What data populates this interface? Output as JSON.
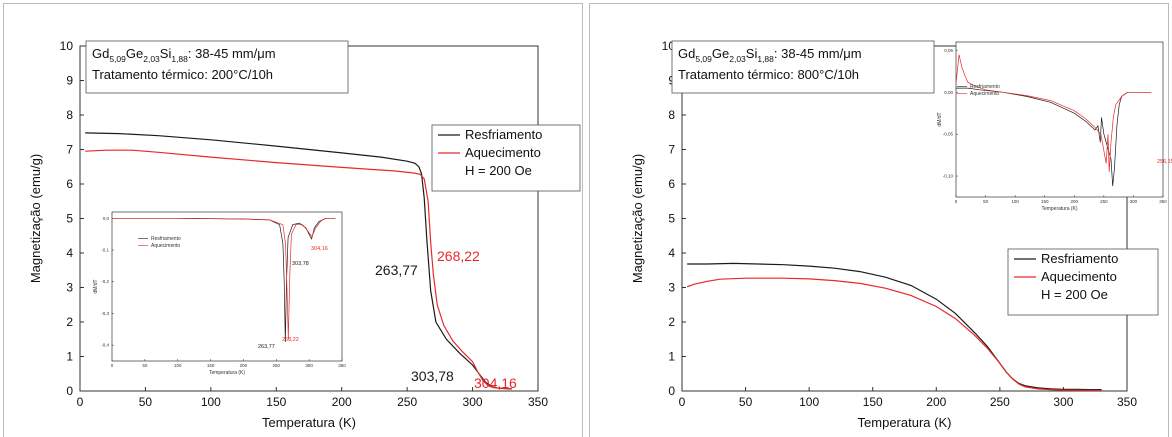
{
  "colors": {
    "resfriamento": "#1a1a1a",
    "aquecimento": "#e8292a",
    "frame": "#333333"
  },
  "chart_data": [
    {
      "type": "line",
      "xlabel": "Temperatura (K)",
      "ylabel": "Magnetização (emu/g)",
      "xlim": [
        0,
        350
      ],
      "ylim": [
        0,
        10
      ],
      "xticks": [
        "0",
        "50",
        "100",
        "150",
        "200",
        "250",
        "300",
        "350"
      ],
      "yticks": [
        "0",
        "1",
        "2",
        "3",
        "4",
        "5",
        "6",
        "7",
        "8",
        "9",
        "10"
      ],
      "info_box": {
        "sample": {
          "base": "Gd",
          "s1": "5,09",
          "e2": "Ge",
          "s2": "2,03",
          "e3": "Si",
          "s3": "1,88",
          "rest": ": 38-45 mm/μm"
        },
        "treatment": "Tratamento térmico: 200°C/10h"
      },
      "legend": {
        "placement": "right",
        "entries": [
          "Resfriamento",
          "Aquecimento"
        ],
        "note": "H = 200 Oe"
      },
      "series": [
        {
          "name": "Resfriamento",
          "x": [
            4,
            30,
            60,
            100,
            150,
            200,
            230,
            250,
            256,
            259,
            261,
            263,
            265,
            268,
            272,
            280,
            290,
            300,
            305,
            310,
            315,
            320,
            325,
            330
          ],
          "y": [
            7.48,
            7.46,
            7.4,
            7.28,
            7.1,
            6.9,
            6.78,
            6.66,
            6.6,
            6.5,
            6.3,
            5.6,
            4.4,
            2.9,
            2.0,
            1.5,
            1.1,
            0.75,
            0.5,
            0.25,
            0.12,
            0.08,
            0.07,
            0.06
          ]
        },
        {
          "name": "Aquecimento",
          "x": [
            4,
            20,
            40,
            60,
            100,
            150,
            200,
            240,
            255,
            260,
            263,
            266,
            268,
            270,
            273,
            278,
            285,
            292,
            300,
            304,
            308,
            312,
            316,
            320,
            330
          ],
          "y": [
            6.95,
            6.98,
            6.98,
            6.92,
            6.78,
            6.62,
            6.48,
            6.38,
            6.32,
            6.28,
            6.15,
            5.5,
            4.3,
            3.4,
            2.5,
            1.9,
            1.45,
            1.15,
            0.85,
            0.55,
            0.3,
            0.15,
            0.1,
            0.08,
            0.07
          ]
        }
      ],
      "annotations": [
        {
          "text": "263,77",
          "color": "black",
          "x": 263.77
        },
        {
          "text": "268,22",
          "color": "red",
          "x": 268.22
        },
        {
          "text": "303,78",
          "color": "black",
          "x": 303.78
        },
        {
          "text": "304,16",
          "color": "red",
          "x": 304.16
        }
      ],
      "inset": {
        "type": "line",
        "xlabel": "Temperatura (K)",
        "ylabel": "dM/dT",
        "xlim": [
          0,
          350
        ],
        "ylim": [
          -0.45,
          0.02
        ],
        "xticks": [
          "0",
          "50",
          "100",
          "150",
          "200",
          "250",
          "300",
          "350"
        ],
        "yticks": [
          "0,0",
          "-0,1",
          "-0,2",
          "-0,3",
          "-0,4"
        ],
        "legend": [
          "Resfriamento",
          "Aquecimento"
        ],
        "series": [
          {
            "name": "Resfriamento",
            "x": [
              0,
              100,
              200,
              240,
              255,
              260,
              262,
              263.77,
              265.5,
              268,
              275,
              285,
              295,
              300,
              303.78,
              308,
              315,
              325,
              340
            ],
            "y": [
              0,
              0,
              -0.002,
              -0.005,
              -0.02,
              -0.08,
              -0.2,
              -0.39,
              -0.2,
              -0.06,
              -0.02,
              -0.015,
              -0.03,
              -0.05,
              -0.065,
              -0.03,
              -0.01,
              0,
              0
            ]
          },
          {
            "name": "Aquecimento",
            "x": [
              0,
              100,
              200,
              240,
              260,
              264,
              266,
              268.22,
              270.5,
              273,
              280,
              290,
              298,
              304.16,
              310,
              318,
              325,
              340
            ],
            "y": [
              0,
              0,
              -0.002,
              -0.005,
              -0.02,
              -0.08,
              -0.2,
              -0.38,
              -0.18,
              -0.05,
              -0.02,
              -0.02,
              -0.04,
              -0.058,
              -0.03,
              -0.008,
              0,
              0
            ]
          }
        ],
        "annotations": [
          {
            "text": "263,77",
            "color": "black",
            "x": 263.77
          },
          {
            "text": "268,22",
            "color": "red",
            "x": 268.22
          },
          {
            "text": "303,78",
            "color": "black",
            "x": 303.78
          },
          {
            "text": "304,16",
            "color": "red",
            "x": 304.16
          }
        ]
      }
    },
    {
      "type": "line",
      "xlabel": "Temperatura (K)",
      "ylabel": "Magnetização (emu/g)",
      "xlim": [
        0,
        350
      ],
      "ylim": [
        0,
        10
      ],
      "xticks": [
        "0",
        "50",
        "100",
        "150",
        "200",
        "250",
        "300",
        "350"
      ],
      "yticks": [
        "0",
        "1",
        "2",
        "3",
        "4",
        "5",
        "6",
        "7",
        "8",
        "9",
        "10"
      ],
      "info_box": {
        "sample": {
          "base": "Gd",
          "s1": "5,09",
          "e2": "Ge",
          "s2": "2,03",
          "e3": "Si",
          "s3": "1,88",
          "rest": ": 38-45 mm/μm"
        },
        "treatment": "Tratamento térmico: 800°C/10h"
      },
      "legend": {
        "placement": "right",
        "entries": [
          "Resfriamento",
          "Aquecimento"
        ],
        "note": "H = 200 Oe"
      },
      "series": [
        {
          "name": "Resfriamento",
          "x": [
            4,
            20,
            40,
            60,
            80,
            100,
            120,
            140,
            160,
            180,
            200,
            215,
            230,
            240,
            250,
            255,
            260,
            265,
            270,
            280,
            290,
            300,
            310,
            320,
            330
          ],
          "y": [
            3.68,
            3.68,
            3.7,
            3.68,
            3.66,
            3.62,
            3.56,
            3.46,
            3.3,
            3.06,
            2.66,
            2.25,
            1.7,
            1.3,
            0.8,
            0.55,
            0.35,
            0.22,
            0.15,
            0.09,
            0.06,
            0.05,
            0.05,
            0.04,
            0.04
          ]
        },
        {
          "name": "Aquecimento",
          "x": [
            4,
            10,
            20,
            30,
            50,
            80,
            100,
            120,
            140,
            160,
            180,
            200,
            215,
            230,
            240,
            250,
            255,
            260,
            265,
            270,
            280,
            290,
            300,
            310,
            320,
            330
          ],
          "y": [
            3.02,
            3.1,
            3.18,
            3.24,
            3.27,
            3.27,
            3.25,
            3.2,
            3.12,
            2.98,
            2.77,
            2.45,
            2.1,
            1.62,
            1.25,
            0.8,
            0.55,
            0.35,
            0.2,
            0.12,
            0.06,
            0.04,
            0.03,
            0.02,
            0.02,
            0.02
          ]
        }
      ],
      "inset": {
        "type": "line",
        "xlabel": "Temperatura (K)",
        "ylabel": "dM/dT",
        "xlim": [
          0,
          350
        ],
        "ylim": [
          -0.125,
          0.06
        ],
        "xticks": [
          "0",
          "50",
          "100",
          "150",
          "200",
          "250",
          "300",
          "350"
        ],
        "yticks": [
          "0,05",
          "0,00",
          "-0,05",
          "-0,10"
        ],
        "legend": [
          "Resfriamento",
          "Aquecimento"
        ],
        "series": [
          {
            "name": "Resfriamento",
            "x": [
              0,
              10,
              20,
              40,
              80,
              120,
              160,
              200,
              220,
              235,
              240,
              244,
              246,
              250,
              258,
              262,
              265,
              268,
              272,
              276,
              280,
              290,
              310,
              330
            ],
            "y": [
              0.005,
              0.005,
              0.005,
              0.003,
              0,
              -0.005,
              -0.012,
              -0.025,
              -0.035,
              -0.045,
              -0.04,
              -0.06,
              -0.03,
              -0.05,
              -0.07,
              -0.08,
              -0.112,
              -0.09,
              -0.04,
              -0.015,
              -0.005,
              0,
              0,
              0
            ]
          },
          {
            "name": "Aquecimento",
            "x": [
              0,
              5,
              10,
              15,
              20,
              30,
              50,
              80,
              120,
              160,
              200,
              220,
              235,
              245,
              250,
              254,
              257,
              259,
              262,
              266,
              270,
              280,
              290,
              310,
              330
            ],
            "y": [
              0.01,
              0.045,
              0.03,
              0.02,
              0.012,
              0.008,
              0.003,
              0,
              -0.004,
              -0.01,
              -0.022,
              -0.032,
              -0.042,
              -0.05,
              -0.07,
              -0.085,
              -0.05,
              -0.095,
              -0.06,
              -0.03,
              -0.015,
              -0.005,
              0,
              0,
              0
            ]
          }
        ],
        "annotations": [
          {
            "text": "256,15",
            "color": "red",
            "x": 256.15
          }
        ]
      }
    }
  ]
}
